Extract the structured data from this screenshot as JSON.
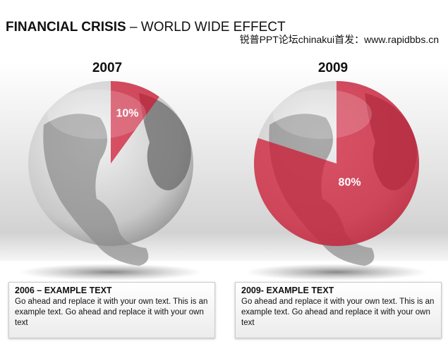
{
  "title": "FINANCIAL CRISIS",
  "title_suffix": "– WORLD WIDE EFFECT",
  "watermark": "锐普PPT论坛chinakui首发：www.rapidbbs.cn",
  "chart_data": [
    {
      "type": "pie",
      "title": "2007",
      "values": [
        10
      ],
      "value_labels": [
        "10%"
      ],
      "color": "#d0132f"
    },
    {
      "type": "pie",
      "title": "2009",
      "values": [
        80
      ],
      "value_labels": [
        "80%"
      ],
      "color": "#d0132f"
    }
  ],
  "boxes": [
    {
      "heading": "2006 – EXAMPLE TEXT",
      "text": "Go ahead and replace it with your own text. This is an example text. Go ahead and replace it with your own text"
    },
    {
      "heading": "2009- EXAMPLE TEXT",
      "text": "Go ahead and replace it with your own text. This is an example text. Go ahead and replace it with your own text"
    }
  ]
}
